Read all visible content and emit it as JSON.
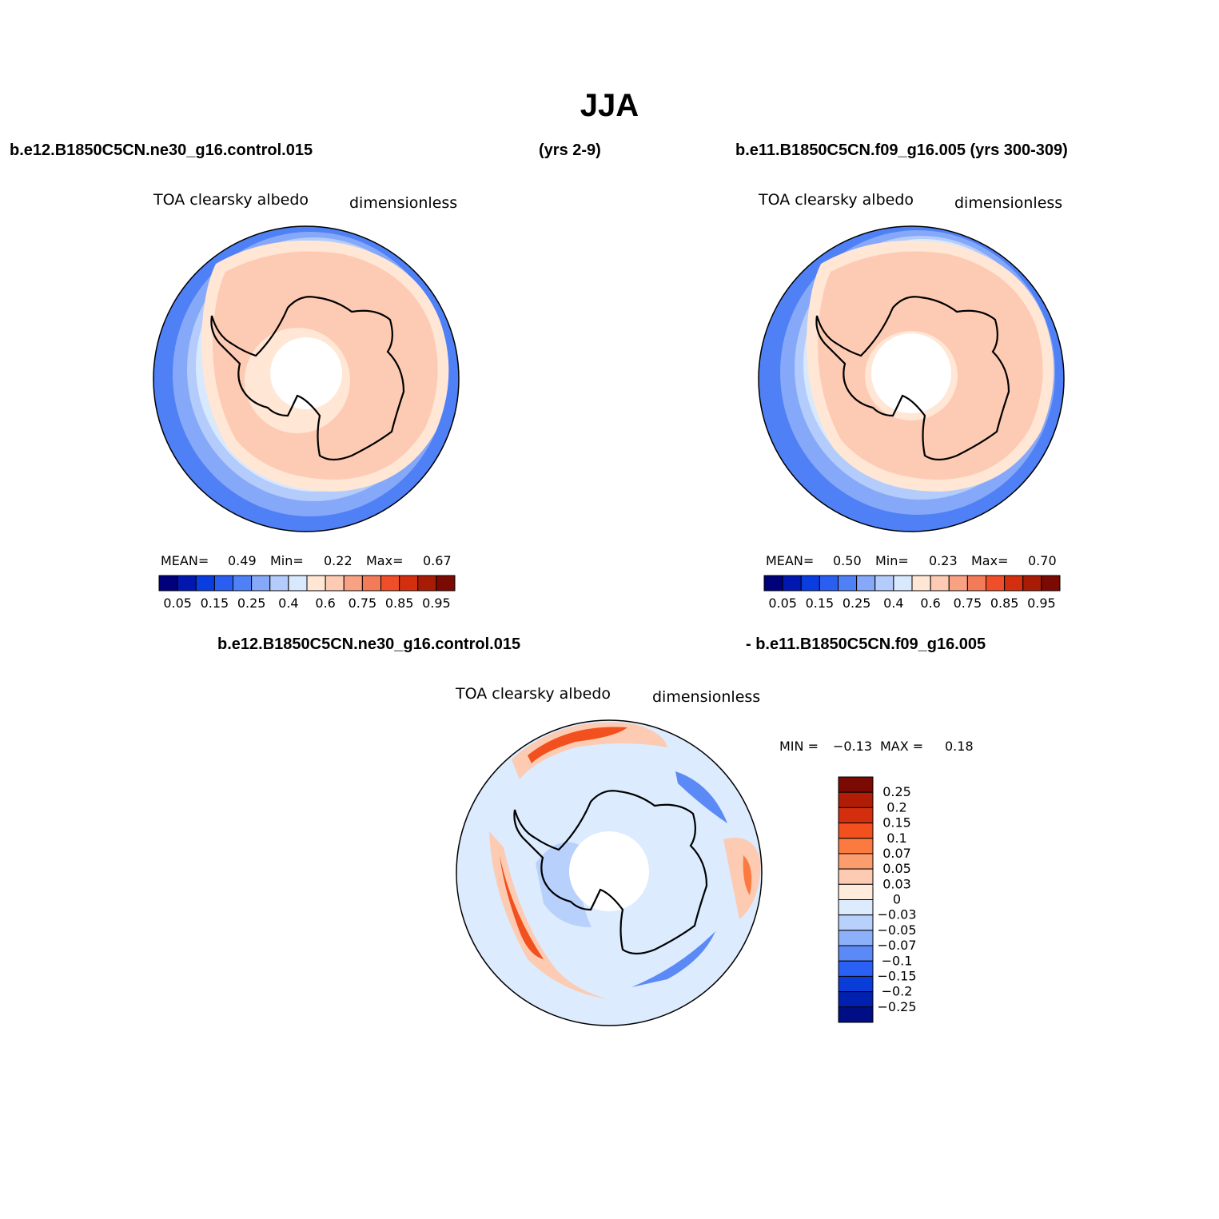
{
  "title": "JJA",
  "header": {
    "case1": "b.e12.B1850C5CN.ne30_g16.control.015",
    "years1": "(yrs 2-9)",
    "case2": "b.e11.B1850C5CN.f09_g16.005 (yrs 300-309)",
    "diff_left": "b.e12.B1850C5CN.ne30_g16.control.015",
    "diff_right": "- b.e11.B1850C5CN.f09_g16.005"
  },
  "panels": [
    {
      "variable": "TOA  clearsky  albedo",
      "units": "dimensionless",
      "stats": {
        "mean_label": "MEAN=",
        "mean": "0.49",
        "min_label": "Min=",
        "min": "0.22",
        "max_label": "Max=",
        "max": "0.67"
      }
    },
    {
      "variable": "TOA  clearsky  albedo",
      "units": "dimensionless",
      "stats": {
        "mean_label": "MEAN=",
        "mean": "0.50",
        "min_label": "Min=",
        "min": "0.23",
        "max_label": "Max=",
        "max": "0.70"
      }
    },
    {
      "variable": "TOA  clearsky  albedo",
      "units": "dimensionless",
      "stats": {
        "min_label": "MIN =",
        "min": "−0.13",
        "max_label": "MAX =",
        "max": "0.18"
      }
    }
  ],
  "colorbar_main": {
    "colors": [
      "#00007a",
      "#0018b0",
      "#0a3de0",
      "#2a5ef0",
      "#4f80f5",
      "#86a8f8",
      "#b4ccfb",
      "#d8e8fd",
      "#ffe6d5",
      "#fdcbb4",
      "#f8a283",
      "#f47b57",
      "#ef4e28",
      "#d32f0e",
      "#a81c06",
      "#7a0a02"
    ],
    "tick_labels": [
      "0.05",
      "0.15",
      "0.25",
      "0.4",
      "0.6",
      "0.75",
      "0.85",
      "0.95"
    ]
  },
  "colorbar_diff": {
    "colors": [
      "#7a0a02",
      "#b01c06",
      "#d32f0e",
      "#f2501e",
      "#fb7a40",
      "#fc9d6e",
      "#fdcbb2",
      "#ffebdb",
      "#dcebfd",
      "#b8d0fc",
      "#8cb0fa",
      "#5b89f6",
      "#2b60f5",
      "#0a3cd8",
      "#0021b0",
      "#000e85"
    ],
    "tick_labels": [
      "0.25",
      "0.2",
      "0.15",
      "0.1",
      "0.07",
      "0.05",
      "0.03",
      "0",
      "−0.03",
      "−0.05",
      "−0.07",
      "−0.1",
      "−0.15",
      "−0.2",
      "−0.25"
    ]
  }
}
